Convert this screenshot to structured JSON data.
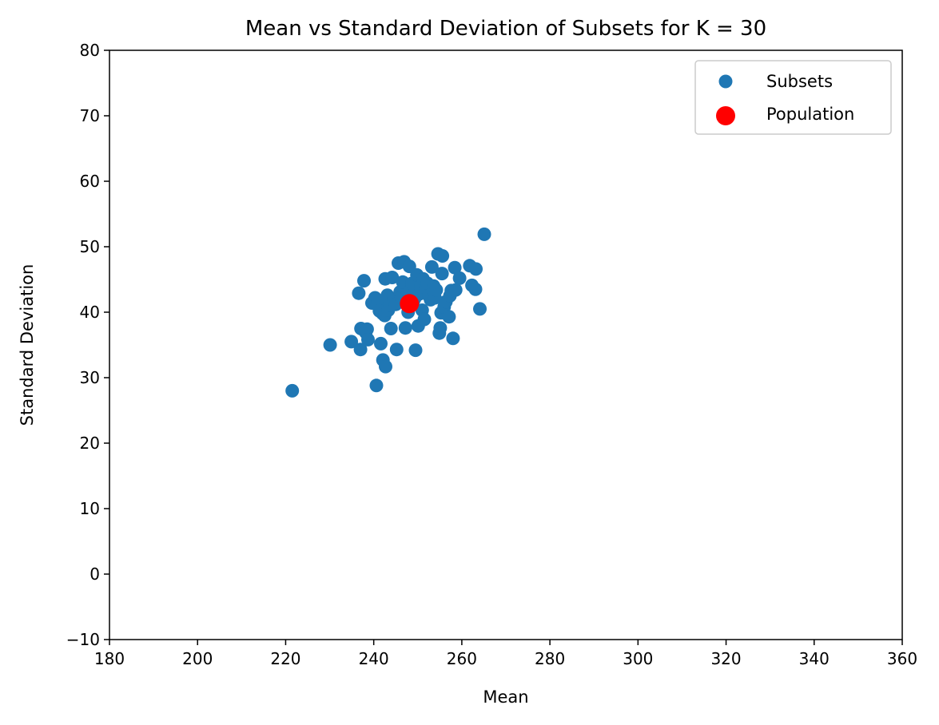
{
  "chart_data": {
    "type": "scatter",
    "title": "Mean vs Standard Deviation of Subsets for K = 30",
    "xlabel": "Mean",
    "ylabel": "Standard Deviation",
    "xlim": [
      180,
      360
    ],
    "ylim": [
      -10,
      80
    ],
    "xticks": [
      "180",
      "200",
      "220",
      "240",
      "260",
      "280",
      "300",
      "320",
      "340",
      "360"
    ],
    "yticks": [
      "−10",
      "0",
      "10",
      "20",
      "30",
      "40",
      "50",
      "60",
      "70",
      "80"
    ],
    "grid": false,
    "legend_position": "top-right",
    "series": [
      {
        "name": "Subsets",
        "color": "#1f77b4",
        "marker": "circle",
        "points": [
          [
            221.5,
            28.0
          ],
          [
            230.1,
            35.0
          ],
          [
            234.9,
            35.5
          ],
          [
            236.6,
            42.9
          ],
          [
            237.0,
            34.3
          ],
          [
            237.1,
            37.5
          ],
          [
            237.8,
            44.8
          ],
          [
            238.2,
            36.9
          ],
          [
            238.5,
            37.4
          ],
          [
            238.7,
            35.8
          ],
          [
            239.6,
            41.4
          ],
          [
            240.3,
            42.2
          ],
          [
            240.6,
            28.8
          ],
          [
            241.0,
            41.7
          ],
          [
            241.3,
            40.2
          ],
          [
            241.6,
            35.2
          ],
          [
            242.0,
            39.8
          ],
          [
            242.1,
            32.7
          ],
          [
            242.5,
            39.5
          ],
          [
            242.6,
            45.1
          ],
          [
            242.7,
            31.7
          ],
          [
            243.1,
            42.6
          ],
          [
            243.3,
            40.3
          ],
          [
            243.6,
            41.1
          ],
          [
            243.9,
            37.5
          ],
          [
            244.2,
            45.3
          ],
          [
            244.6,
            42.0
          ],
          [
            245.0,
            41.2
          ],
          [
            245.2,
            34.3
          ],
          [
            245.6,
            47.5
          ],
          [
            246.0,
            43.1
          ],
          [
            246.3,
            42.2
          ],
          [
            246.6,
            44.6
          ],
          [
            246.9,
            47.7
          ],
          [
            247.2,
            37.6
          ],
          [
            247.5,
            42.5
          ],
          [
            247.8,
            40.0
          ],
          [
            248.1,
            47.0
          ],
          [
            248.4,
            43.4
          ],
          [
            248.7,
            44.4
          ],
          [
            249.0,
            41.7
          ],
          [
            249.3,
            42.1
          ],
          [
            249.5,
            34.2
          ],
          [
            249.8,
            45.7
          ],
          [
            250.1,
            37.9
          ],
          [
            250.4,
            42.8
          ],
          [
            250.7,
            43.9
          ],
          [
            251.0,
            40.3
          ],
          [
            251.2,
            45.1
          ],
          [
            251.5,
            38.9
          ],
          [
            251.8,
            43.8
          ],
          [
            252.2,
            44.4
          ],
          [
            252.5,
            42.5
          ],
          [
            252.9,
            41.9
          ],
          [
            253.2,
            46.9
          ],
          [
            253.6,
            44.0
          ],
          [
            253.9,
            42.2
          ],
          [
            254.2,
            43.4
          ],
          [
            254.6,
            48.9
          ],
          [
            254.9,
            36.8
          ],
          [
            255.1,
            37.6
          ],
          [
            255.3,
            39.9
          ],
          [
            255.5,
            45.9
          ],
          [
            255.6,
            48.6
          ],
          [
            256.0,
            40.8
          ],
          [
            256.4,
            41.6
          ],
          [
            257.1,
            39.3
          ],
          [
            257.3,
            42.5
          ],
          [
            257.6,
            43.3
          ],
          [
            258.0,
            36.0
          ],
          [
            258.4,
            46.8
          ],
          [
            258.6,
            43.4
          ],
          [
            259.5,
            45.2
          ],
          [
            261.8,
            47.1
          ],
          [
            262.3,
            44.1
          ],
          [
            263.1,
            43.5
          ],
          [
            263.2,
            46.6
          ],
          [
            264.1,
            40.5
          ],
          [
            265.1,
            51.9
          ]
        ]
      },
      {
        "name": "Population",
        "color": "#ff0000",
        "marker": "circle",
        "points": [
          [
            248.1,
            41.3
          ]
        ]
      }
    ]
  }
}
